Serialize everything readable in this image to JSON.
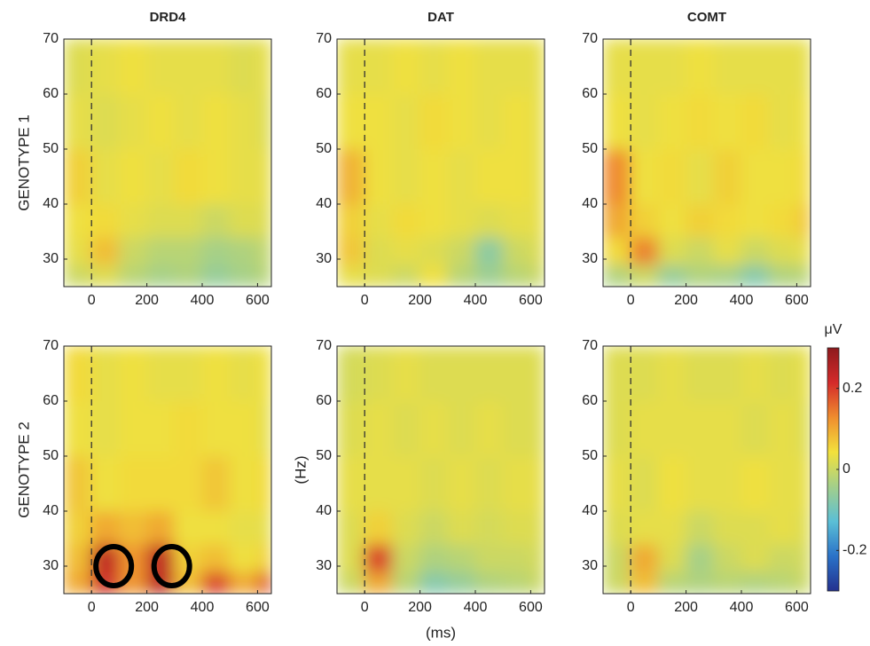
{
  "chart_data": [
    {
      "type": "heatmap",
      "title": "DRD4",
      "ylabel": "GENOTYPE 1",
      "xbins": [
        -100,
        0,
        100,
        200,
        300,
        400,
        500,
        600,
        650
      ],
      "ybins": [
        25,
        29,
        34,
        40,
        50,
        60,
        70
      ],
      "xlim": [
        -100,
        650
      ],
      "ylim": [
        25,
        70
      ],
      "xticks": [
        0,
        200,
        400,
        600
      ],
      "yticks": [
        30,
        40,
        50,
        60,
        70
      ],
      "vline": 0,
      "values": [
        [
          0.0,
          0.02,
          -0.02,
          -0.04,
          -0.03,
          -0.06,
          -0.04,
          -0.02
        ],
        [
          0.03,
          0.08,
          0.0,
          -0.02,
          -0.02,
          -0.04,
          -0.03,
          -0.01
        ],
        [
          0.04,
          0.05,
          0.03,
          0.02,
          0.02,
          0.0,
          0.02,
          0.02
        ],
        [
          0.06,
          0.03,
          0.04,
          0.03,
          0.05,
          0.04,
          0.03,
          0.03
        ],
        [
          0.03,
          0.02,
          0.03,
          0.04,
          0.03,
          0.04,
          0.03,
          0.02
        ],
        [
          0.02,
          0.03,
          0.04,
          0.03,
          0.03,
          0.03,
          0.02,
          0.03
        ]
      ]
    },
    {
      "type": "heatmap",
      "title": "DAT",
      "xbins": [
        -100,
        0,
        100,
        200,
        300,
        400,
        500,
        600,
        650
      ],
      "ybins": [
        25,
        29,
        34,
        40,
        50,
        60,
        70
      ],
      "xlim": [
        -100,
        650
      ],
      "ylim": [
        25,
        70
      ],
      "xticks": [
        0,
        200,
        400,
        600
      ],
      "yticks": [
        30,
        40,
        50,
        60,
        70
      ],
      "vline": 0,
      "values": [
        [
          0.03,
          0.02,
          0.0,
          0.04,
          -0.02,
          -0.05,
          -0.02,
          0.0
        ],
        [
          0.07,
          0.02,
          0.03,
          0.02,
          0.0,
          -0.07,
          0.0,
          0.02
        ],
        [
          0.06,
          0.03,
          0.05,
          0.04,
          0.03,
          0.02,
          0.03,
          0.03
        ],
        [
          0.09,
          0.04,
          0.03,
          0.04,
          0.03,
          0.04,
          0.04,
          0.03
        ],
        [
          0.04,
          0.04,
          0.03,
          0.05,
          0.04,
          0.03,
          0.04,
          0.03
        ],
        [
          0.03,
          0.03,
          0.04,
          0.03,
          0.04,
          0.03,
          0.03,
          0.03
        ]
      ]
    },
    {
      "type": "heatmap",
      "title": "COMT",
      "xbins": [
        -100,
        0,
        100,
        200,
        300,
        400,
        500,
        600,
        650
      ],
      "ybins": [
        25,
        29,
        34,
        40,
        50,
        60,
        70
      ],
      "xlim": [
        -100,
        650
      ],
      "ylim": [
        25,
        70
      ],
      "xticks": [
        0,
        200,
        400,
        600
      ],
      "yticks": [
        30,
        40,
        50,
        60,
        70
      ],
      "vline": 0,
      "values": [
        [
          -0.03,
          0.0,
          -0.06,
          -0.03,
          -0.04,
          -0.08,
          -0.03,
          -0.02
        ],
        [
          0.05,
          0.14,
          0.02,
          0.0,
          0.03,
          0.0,
          0.02,
          0.03
        ],
        [
          0.1,
          0.06,
          0.04,
          0.06,
          0.05,
          0.04,
          0.05,
          0.07
        ],
        [
          0.13,
          0.04,
          0.05,
          0.03,
          0.06,
          0.04,
          0.04,
          0.05
        ],
        [
          0.04,
          0.03,
          0.04,
          0.05,
          0.04,
          0.05,
          0.03,
          0.04
        ],
        [
          0.03,
          0.03,
          0.03,
          0.04,
          0.03,
          0.03,
          0.03,
          0.03
        ]
      ]
    },
    {
      "type": "heatmap",
      "ylabel": "GENOTYPE 2",
      "xbins": [
        -100,
        0,
        100,
        200,
        300,
        400,
        500,
        600,
        650
      ],
      "ybins": [
        25,
        29,
        34,
        40,
        50,
        60,
        70
      ],
      "xlim": [
        -100,
        650
      ],
      "ylim": [
        25,
        70
      ],
      "xticks": [
        0,
        200,
        400,
        600
      ],
      "yticks": [
        30,
        40,
        50,
        60,
        70
      ],
      "vline": 0,
      "circles": [
        {
          "x": 80,
          "y": 30
        },
        {
          "x": 290,
          "y": 30
        }
      ],
      "values": [
        [
          0.1,
          0.22,
          0.12,
          0.24,
          0.08,
          0.2,
          0.1,
          0.18
        ],
        [
          0.08,
          0.24,
          0.12,
          0.24,
          0.06,
          0.08,
          0.04,
          0.06
        ],
        [
          0.06,
          0.1,
          0.08,
          0.1,
          0.04,
          0.04,
          0.03,
          0.03
        ],
        [
          0.07,
          0.04,
          0.05,
          0.05,
          0.05,
          0.07,
          0.04,
          0.05
        ],
        [
          0.04,
          0.03,
          0.04,
          0.04,
          0.05,
          0.04,
          0.04,
          0.03
        ],
        [
          0.05,
          0.03,
          0.04,
          0.03,
          0.03,
          0.04,
          0.03,
          0.04
        ]
      ]
    },
    {
      "type": "heatmap",
      "ylabel": "(Hz)",
      "xlabel": "(ms)",
      "xbins": [
        -100,
        0,
        100,
        200,
        300,
        400,
        500,
        600,
        650
      ],
      "ybins": [
        25,
        29,
        34,
        40,
        50,
        60,
        70
      ],
      "xlim": [
        -100,
        650
      ],
      "ylim": [
        25,
        70
      ],
      "xticks": [
        0,
        200,
        400,
        600
      ],
      "yticks": [
        30,
        40,
        50,
        60,
        70
      ],
      "vline": 0,
      "values": [
        [
          0.0,
          0.1,
          -0.02,
          -0.08,
          -0.06,
          -0.03,
          -0.02,
          0.0
        ],
        [
          0.02,
          0.2,
          0.0,
          -0.03,
          -0.02,
          0.0,
          0.0,
          0.01
        ],
        [
          0.02,
          0.06,
          0.02,
          0.0,
          0.02,
          0.01,
          0.02,
          0.02
        ],
        [
          0.03,
          0.03,
          0.03,
          0.02,
          0.03,
          0.02,
          0.03,
          0.03
        ],
        [
          0.02,
          0.03,
          0.02,
          0.03,
          0.02,
          0.03,
          0.02,
          0.02
        ],
        [
          0.01,
          0.02,
          0.03,
          0.02,
          0.02,
          0.02,
          0.02,
          0.02
        ]
      ]
    },
    {
      "type": "heatmap",
      "xbins": [
        -100,
        0,
        100,
        200,
        300,
        400,
        500,
        600,
        650
      ],
      "ybins": [
        25,
        29,
        34,
        40,
        50,
        60,
        70
      ],
      "xlim": [
        -100,
        650
      ],
      "ylim": [
        25,
        70
      ],
      "xticks": [
        0,
        200,
        400,
        600
      ],
      "yticks": [
        30,
        40,
        50,
        60,
        70
      ],
      "vline": 0,
      "values": [
        [
          0.0,
          0.08,
          -0.02,
          -0.03,
          -0.02,
          -0.03,
          -0.02,
          0.0
        ],
        [
          0.0,
          0.1,
          0.02,
          -0.04,
          0.0,
          0.02,
          0.0,
          0.01
        ],
        [
          0.02,
          0.03,
          0.03,
          0.0,
          0.02,
          0.02,
          0.03,
          0.02
        ],
        [
          0.03,
          0.02,
          0.04,
          0.03,
          0.03,
          0.04,
          0.03,
          0.03
        ],
        [
          0.02,
          0.03,
          0.03,
          0.03,
          0.03,
          0.02,
          0.03,
          0.02
        ],
        [
          0.02,
          0.02,
          0.03,
          0.02,
          0.02,
          0.03,
          0.02,
          0.03
        ]
      ]
    },
    {
      "type": "colorbar",
      "label": "μV",
      "clim": [
        -0.3,
        0.3
      ],
      "ticks": [
        0.2,
        0,
        -0.2
      ],
      "colormap": [
        "#24318f",
        "#2a72c8",
        "#5bbfd6",
        "#a3cf8a",
        "#f2e13c",
        "#ef8d2e",
        "#d42a2a",
        "#8e1a1d"
      ]
    }
  ]
}
